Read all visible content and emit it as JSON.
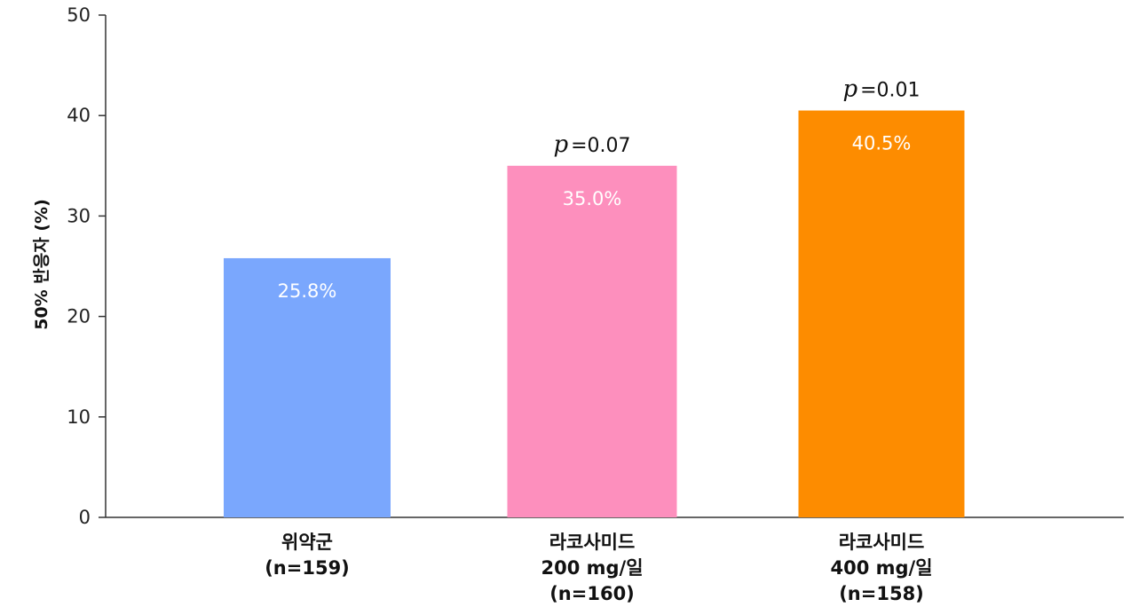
{
  "chart_data": {
    "type": "bar",
    "title": "",
    "xlabel": "",
    "ylabel": "50% 반응자 (%)",
    "ylim": [
      0,
      50
    ],
    "yticks": [
      0,
      10,
      20,
      30,
      40,
      50
    ],
    "grid": false,
    "categories": [
      [
        "위약군",
        "(n=159)"
      ],
      [
        "라코사미드",
        "200 mg/일",
        "(n=160)"
      ],
      [
        "라코사미드",
        "400 mg/일",
        "(n=158)"
      ]
    ],
    "values": [
      25.8,
      35.0,
      40.5
    ],
    "value_labels": [
      "25.8%",
      "35.0%",
      "40.5%"
    ],
    "annotations": [
      {
        "category_index": 1,
        "p_symbol": "p",
        "text": "=0.07"
      },
      {
        "category_index": 2,
        "p_symbol": "p",
        "text": "=0.01"
      }
    ],
    "colors": [
      "#7aa7fd",
      "#fd8fbd",
      "#fd8c00"
    ]
  }
}
